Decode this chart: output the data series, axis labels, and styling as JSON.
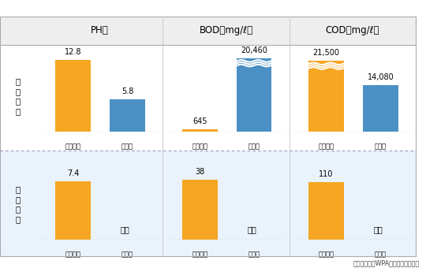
{
  "title_row": [
    "PH値",
    "BOD（mg/ℓ）",
    "COD（mg/ℓ）"
  ],
  "col_labels": [
    "現像廃液",
    "湿し水"
  ],
  "orange_color": "#F5A623",
  "blue_color": "#4A90C4",
  "bottom_bg": "#EAF3FB",
  "header_bg": "#EEEEEE",
  "data": {
    "water_on": {
      "PH": {
        "gen": 12.8,
        "shim": 5.8,
        "gen_cut": false,
        "shim_cut": false
      },
      "BOD": {
        "gen": 645,
        "shim": 20460,
        "gen_cut": false,
        "shim_cut": true
      },
      "COD": {
        "gen": 21500,
        "shim": 14080,
        "gen_cut": true,
        "shim_cut": false
      }
    },
    "water_off": {
      "PH": {
        "gen": 7.4,
        "shim": 0,
        "gen_cut": false,
        "shim_cut": false
      },
      "BOD": {
        "gen": 38,
        "shim": 0,
        "gen_cut": false,
        "shim_cut": false
      },
      "COD": {
        "gen": 110,
        "shim": 0,
        "gen_cut": false,
        "shim_cut": false
      }
    }
  },
  "labels_water_on": {
    "PH": {
      "gen": "12.8",
      "shim": "5.8"
    },
    "BOD": {
      "gen": "645",
      "shim": "20,460"
    },
    "COD": {
      "gen": "21,500",
      "shim": "14,080"
    }
  },
  "labels_water_off": {
    "PH": {
      "gen": "7.4",
      "shim": "ゼロ"
    },
    "BOD": {
      "gen": "38",
      "shim": "ゼロ"
    },
    "COD": {
      "gen": "110",
      "shim": "ゼロ"
    }
  },
  "max_vals_top": {
    "PH": 14,
    "BOD": 22000,
    "COD": 24000
  },
  "max_vals_bot": {
    "PH": 10,
    "BOD": 50,
    "COD": 150
  },
  "footer": "東レ株式会社WPA紹介資料より抜粋"
}
